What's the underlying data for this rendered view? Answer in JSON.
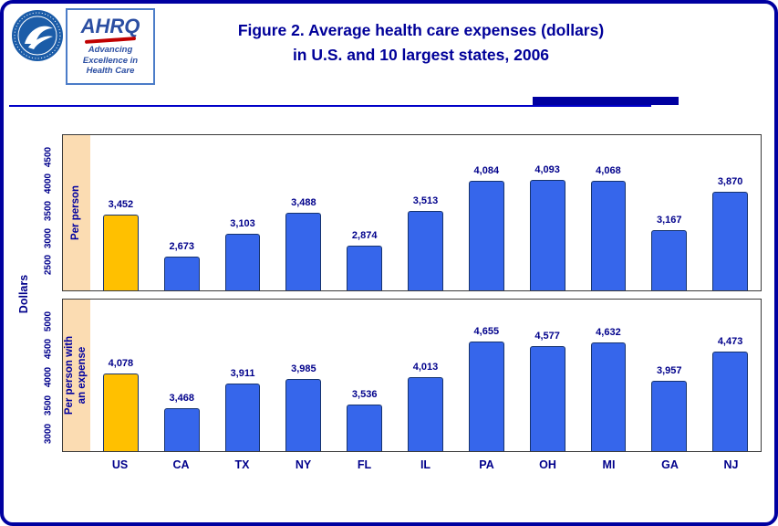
{
  "header": {
    "title_line1": "Figure 2. Average health care expenses (dollars)",
    "title_line2": "in U.S. and 10 largest states, 2006",
    "ahrq": {
      "name": "AHRQ",
      "tagline_lines": [
        "Advancing",
        "Excellence in",
        "Health Care"
      ]
    }
  },
  "chart_data": {
    "type": "bar",
    "categories": [
      "US",
      "CA",
      "TX",
      "NY",
      "FL",
      "IL",
      "PA",
      "OH",
      "MI",
      "GA",
      "NJ"
    ],
    "ylabel": "Dollars",
    "highlight_category": "US",
    "grid": false,
    "legend_position": "none",
    "panels": [
      {
        "label": "Per person",
        "label_lines": [
          "Per person"
        ],
        "values": [
          3452,
          2673,
          3103,
          3488,
          2874,
          3513,
          4084,
          4093,
          4068,
          3167,
          3870
        ],
        "value_labels": [
          "3,452",
          "2,673",
          "3,103",
          "3,488",
          "2,874",
          "3,513",
          "4,084",
          "4,093",
          "4,068",
          "3,167",
          "3,870"
        ],
        "yticks": [
          2500,
          3000,
          3500,
          4000,
          4500
        ],
        "ylim": [
          2050,
          4920
        ]
      },
      {
        "label": "Per person with an expense",
        "label_lines": [
          "Per person with",
          "an expense"
        ],
        "values": [
          4078,
          3468,
          3911,
          3985,
          3536,
          4013,
          4655,
          4577,
          4632,
          3957,
          4473
        ],
        "value_labels": [
          "4,078",
          "3,468",
          "3,911",
          "3,985",
          "3,536",
          "4,013",
          "4,655",
          "4,577",
          "4,632",
          "3,957",
          "4,473"
        ],
        "yticks": [
          3000,
          3500,
          4000,
          4500,
          5000
        ],
        "ylim": [
          2700,
          5400
        ]
      }
    ],
    "colors": {
      "bar": "#3666EB",
      "bar_highlight": "#FFC000",
      "bar_border": "#16336E",
      "strip_bg": "#FBDCB2",
      "text": "#00008B",
      "title": "#000099",
      "page_border": "#0000A0"
    }
  }
}
